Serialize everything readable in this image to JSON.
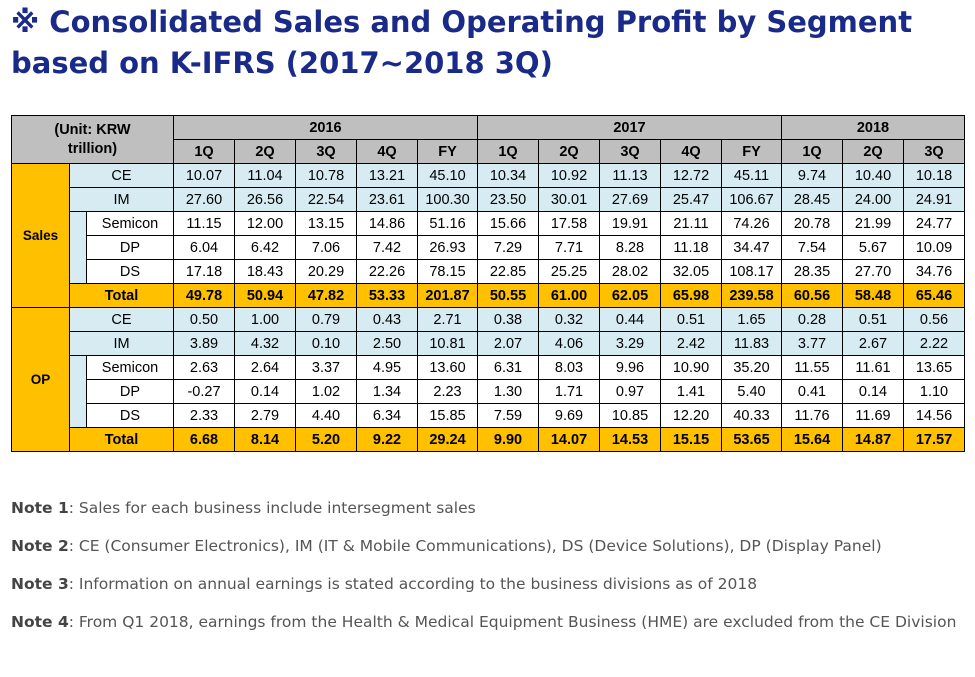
{
  "title": "※ Consolidated Sales and Operating Profit by Segment based on K-IFRS (2017~2018 3Q)",
  "table": {
    "unit_line1": "(Unit: KRW",
    "unit_line2": "trillion)",
    "years": [
      "2016",
      "2017",
      "2018"
    ],
    "quarters": [
      "1Q",
      "2Q",
      "3Q",
      "4Q",
      "FY",
      "1Q",
      "2Q",
      "3Q",
      "4Q",
      "FY",
      "1Q",
      "2Q",
      "3Q"
    ],
    "groups": [
      {
        "label": "Sales",
        "rows": [
          {
            "label": "CE",
            "values": [
              "10.07",
              "11.04",
              "10.78",
              "13.21",
              "45.10",
              "10.34",
              "10.92",
              "11.13",
              "12.72",
              "45.11",
              "9.74",
              "10.40",
              "10.18"
            ]
          },
          {
            "label": "IM",
            "values": [
              "27.60",
              "26.56",
              "22.54",
              "23.61",
              "100.30",
              "23.50",
              "30.01",
              "27.69",
              "25.47",
              "106.67",
              "28.45",
              "24.00",
              "24.91"
            ]
          },
          {
            "label": "Semicon",
            "values": [
              "11.15",
              "12.00",
              "13.15",
              "14.86",
              "51.16",
              "15.66",
              "17.58",
              "19.91",
              "21.11",
              "74.26",
              "20.78",
              "21.99",
              "24.77"
            ]
          },
          {
            "label": "DP",
            "values": [
              "6.04",
              "6.42",
              "7.06",
              "7.42",
              "26.93",
              "7.29",
              "7.71",
              "8.28",
              "11.18",
              "34.47",
              "7.54",
              "5.67",
              "10.09"
            ]
          },
          {
            "label": "DS",
            "values": [
              "17.18",
              "18.43",
              "20.29",
              "22.26",
              "78.15",
              "22.85",
              "25.25",
              "28.02",
              "32.05",
              "108.17",
              "28.35",
              "27.70",
              "34.76"
            ]
          },
          {
            "label": "Total",
            "values": [
              "49.78",
              "50.94",
              "47.82",
              "53.33",
              "201.87",
              "50.55",
              "61.00",
              "62.05",
              "65.98",
              "239.58",
              "60.56",
              "58.48",
              "65.46"
            ]
          }
        ]
      },
      {
        "label": "OP",
        "rows": [
          {
            "label": "CE",
            "values": [
              "0.50",
              "1.00",
              "0.79",
              "0.43",
              "2.71",
              "0.38",
              "0.32",
              "0.44",
              "0.51",
              "1.65",
              "0.28",
              "0.51",
              "0.56"
            ]
          },
          {
            "label": "IM",
            "values": [
              "3.89",
              "4.32",
              "0.10",
              "2.50",
              "10.81",
              "2.07",
              "4.06",
              "3.29",
              "2.42",
              "11.83",
              "3.77",
              "2.67",
              "2.22"
            ]
          },
          {
            "label": "Semicon",
            "values": [
              "2.63",
              "2.64",
              "3.37",
              "4.95",
              "13.60",
              "6.31",
              "8.03",
              "9.96",
              "10.90",
              "35.20",
              "11.55",
              "11.61",
              "13.65"
            ]
          },
          {
            "label": "DP",
            "values": [
              "-0.27",
              "0.14",
              "1.02",
              "1.34",
              "2.23",
              "1.30",
              "1.71",
              "0.97",
              "1.41",
              "5.40",
              "0.41",
              "0.14",
              "1.10"
            ]
          },
          {
            "label": "DS",
            "values": [
              "2.33",
              "2.79",
              "4.40",
              "6.34",
              "15.85",
              "7.59",
              "9.69",
              "10.85",
              "12.20",
              "40.33",
              "11.76",
              "11.69",
              "14.56"
            ]
          },
          {
            "label": "Total",
            "values": [
              "6.68",
              "8.14",
              "5.20",
              "9.22",
              "29.24",
              "9.90",
              "14.07",
              "14.53",
              "15.15",
              "53.65",
              "15.64",
              "14.87",
              "17.57"
            ]
          }
        ]
      }
    ]
  },
  "notes": [
    {
      "label": "Note 1",
      "text": ": Sales for each business include intersegment sales"
    },
    {
      "label": "Note 2",
      "text": ": CE (Consumer Electronics), IM (IT & Mobile Communications), DS (Device Solutions), DP (Display Panel)"
    },
    {
      "label": "Note 3",
      "text": ": Information on annual earnings is stated according to the business divisions as of 2018"
    },
    {
      "label": "Note 4",
      "text": ": From Q1 2018, earnings from the Health & Medical Equipment Business (HME) are excluded from the CE Division"
    }
  ],
  "colors": {
    "title": "#1a2a88",
    "header_gray": "#bfbfbf",
    "row_blue": "#d6ecf2",
    "total_gold": "#ffc000"
  }
}
